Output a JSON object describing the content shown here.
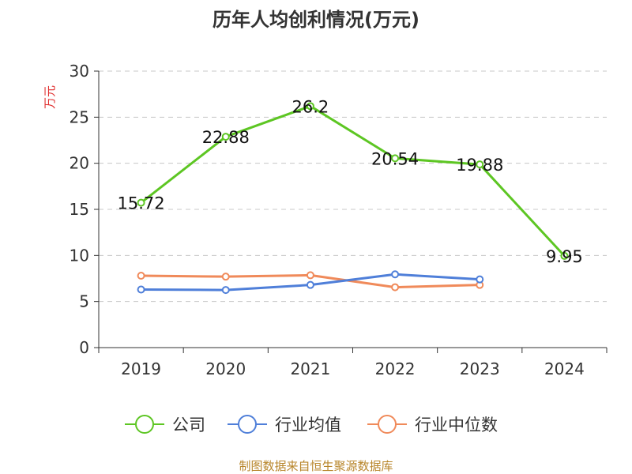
{
  "chart_data": {
    "type": "line",
    "title": "历年人均创利情况(万元)",
    "ylabel": "万元",
    "xlabel": "",
    "categories": [
      "2019",
      "2020",
      "2021",
      "2022",
      "2023",
      "2024"
    ],
    "ylim": [
      0,
      30
    ],
    "yticks": [
      0,
      5,
      10,
      15,
      20,
      25,
      30
    ],
    "grid": "horizontal dashed",
    "legend_position": "bottom",
    "series": [
      {
        "name": "公司",
        "color": "#5dc623",
        "values": [
          15.72,
          22.88,
          26.2,
          20.54,
          19.88,
          9.95
        ],
        "labels": [
          "15.72",
          "22.88",
          "26.2",
          "20.54",
          "19.88",
          "9.95"
        ]
      },
      {
        "name": "行业均值",
        "color": "#4f7fd9",
        "values": [
          6.3,
          6.25,
          6.8,
          7.95,
          7.4,
          null
        ]
      },
      {
        "name": "行业中位数",
        "color": "#f08a5a",
        "values": [
          7.8,
          7.7,
          7.85,
          6.55,
          6.8,
          null
        ]
      }
    ],
    "source": "制图数据来自恒生聚源数据库"
  }
}
